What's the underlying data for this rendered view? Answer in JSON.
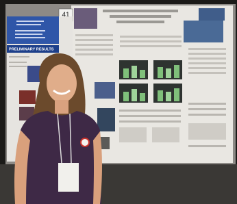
{
  "poster_number": "41",
  "left_poster": {
    "section_heading": "PRELIMINARY RESULTS"
  }
}
